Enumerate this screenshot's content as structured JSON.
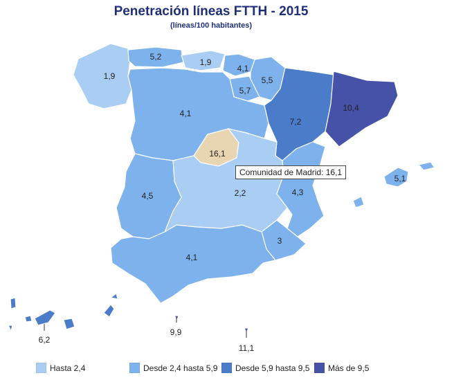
{
  "title": "Penetración líneas FTTH - 2015",
  "subtitle": "(líneas/100 habitantes)",
  "tooltip": "Comunidad de Madrid: 16,1",
  "colors": {
    "hasta_2_4": "#a9cdf3",
    "desde_2_4_hasta_5_9": "#7eb2ed",
    "desde_5_9_hasta_9_5": "#4a7cc9",
    "mas_de_9_5": "#4652a8",
    "highlight": "#e8d6b3"
  },
  "regions": [
    {
      "value": "1,9",
      "category": "hasta_2_4"
    },
    {
      "value": "5,2",
      "category": "desde_2_4_hasta_5_9"
    },
    {
      "value": "1,9",
      "category": "hasta_2_4"
    },
    {
      "value": "4,1",
      "category": "desde_2_4_hasta_5_9"
    },
    {
      "value": "5,5",
      "category": "desde_2_4_hasta_5_9"
    },
    {
      "value": "5,7",
      "category": "desde_2_4_hasta_5_9"
    },
    {
      "value": "4,1",
      "category": "desde_2_4_hasta_5_9"
    },
    {
      "value": "7,2",
      "category": "desde_5_9_hasta_9_5"
    },
    {
      "value": "10,4",
      "category": "mas_de_9_5"
    },
    {
      "value": "16,1",
      "category": "highlight"
    },
    {
      "value": "2,2",
      "category": "hasta_2_4"
    },
    {
      "value": "4,5",
      "category": "desde_2_4_hasta_5_9"
    },
    {
      "value": "4,3",
      "category": "desde_2_4_hasta_5_9"
    },
    {
      "value": "5,1",
      "category": "desde_2_4_hasta_5_9"
    },
    {
      "value": "3",
      "category": "desde_2_4_hasta_5_9"
    },
    {
      "value": "4,1",
      "category": "desde_2_4_hasta_5_9"
    },
    {
      "value": "6,2",
      "category": "desde_5_9_hasta_9_5"
    },
    {
      "value": "9,9",
      "category": "mas_de_9_5"
    },
    {
      "value": "11,1",
      "category": "mas_de_9_5"
    }
  ],
  "legend": [
    {
      "label": "Hasta 2,4",
      "color": "#a9cdf3"
    },
    {
      "label": "Desde 2,4 hasta 5,9",
      "color": "#7eb2ed"
    },
    {
      "label": "Desde 5,9 hasta 9,5",
      "color": "#4a7cc9"
    },
    {
      "label": "Más de 9,5",
      "color": "#4652a8"
    }
  ]
}
